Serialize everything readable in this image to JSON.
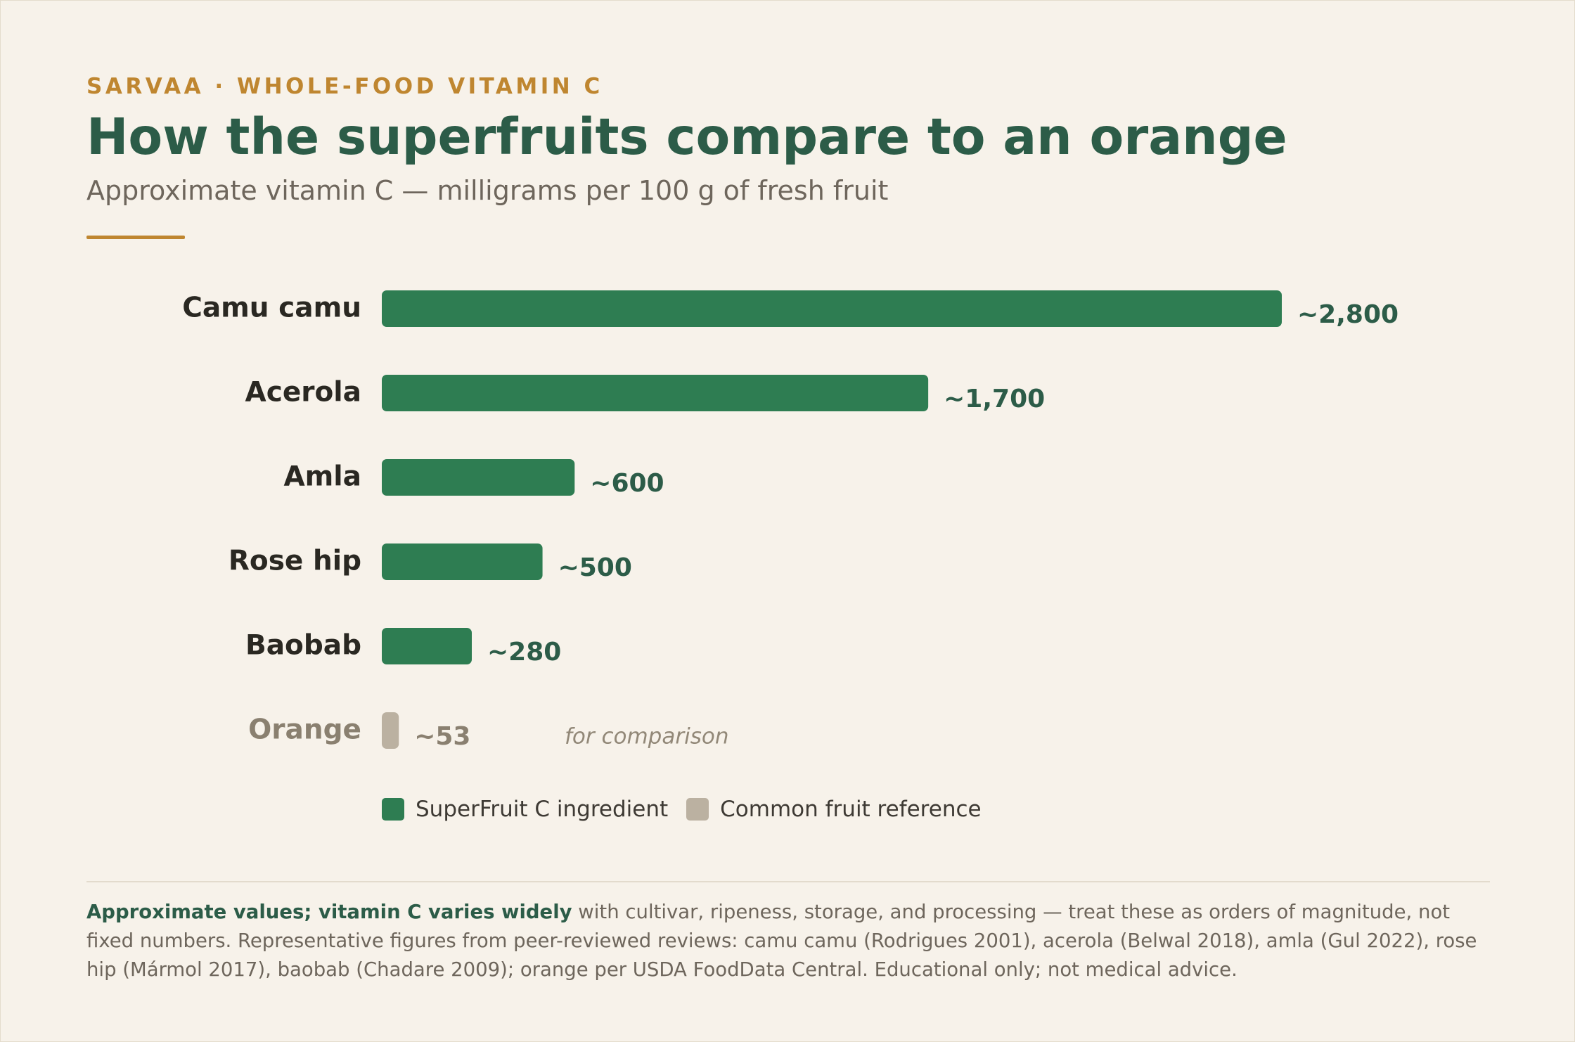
{
  "header": {
    "eyebrow": "SARVAA · WHOLE-FOOD VITAMIN C",
    "title": "How the superfruits compare to an orange",
    "subtitle": "Approximate vitamin C — milligrams per 100 g of fresh fruit"
  },
  "colors": {
    "superfruit": "#2e7d52",
    "reference": "#bbb1a1",
    "value_label_superfruit": "#2c5c48",
    "value_label_reference": "#8a8070",
    "category_label": "#2a2822",
    "category_label_reference": "#8a8070",
    "accent": "#bf8630"
  },
  "chart_data": {
    "type": "bar",
    "orientation": "horizontal",
    "categories": [
      "Camu camu",
      "Acerola",
      "Amla",
      "Rose hip",
      "Baobab",
      "Orange"
    ],
    "values": [
      2800,
      1700,
      600,
      500,
      280,
      53
    ],
    "value_labels": [
      "~2,800",
      "~1,700",
      "~600",
      "~500",
      "~280",
      "~53"
    ],
    "groups": [
      "superfruit",
      "superfruit",
      "superfruit",
      "superfruit",
      "superfruit",
      "reference"
    ],
    "annotations": [
      {
        "category": "Orange",
        "text": "for comparison"
      }
    ],
    "xlim": [
      0,
      2800
    ],
    "grid": false,
    "legend_position": "bottom-left"
  },
  "legend": {
    "items": [
      {
        "label": "SuperFruit C ingredient",
        "group": "superfruit"
      },
      {
        "label": "Common fruit reference",
        "group": "reference"
      }
    ]
  },
  "footnote": {
    "lead": "Approximate values; vitamin C varies widely",
    "body": " with cultivar, ripeness, storage, and processing — treat these as orders of magnitude, not fixed numbers. Representative figures from peer-reviewed reviews: camu camu (Rodrigues 2001), acerola (Belwal 2018), amla (Gul 2022), rose hip (Mármol 2017), baobab (Chadare 2009); orange per USDA FoodData Central. Educational only; not medical advice."
  }
}
